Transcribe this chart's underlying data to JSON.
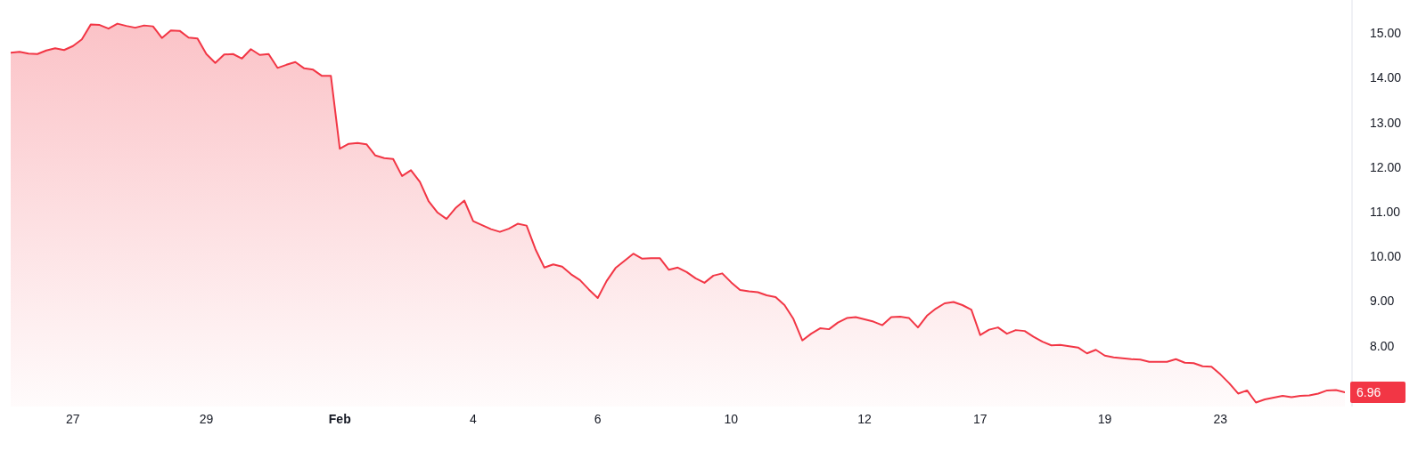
{
  "chart_data": {
    "type": "area",
    "color": "#f23645",
    "categories": [
      null,
      null,
      null,
      null,
      null,
      null,
      null,
      "27",
      null,
      null,
      null,
      null,
      null,
      null,
      null,
      null,
      null,
      null,
      null,
      null,
      null,
      null,
      "29",
      null,
      null,
      null,
      null,
      null,
      null,
      null,
      null,
      null,
      null,
      null,
      null,
      null,
      null,
      "Feb",
      null,
      null,
      null,
      null,
      null,
      null,
      null,
      null,
      null,
      null,
      null,
      null,
      null,
      null,
      "4",
      null,
      null,
      null,
      null,
      null,
      null,
      null,
      null,
      null,
      null,
      null,
      null,
      null,
      "6",
      null,
      null,
      null,
      null,
      null,
      null,
      null,
      null,
      null,
      null,
      null,
      null,
      null,
      null,
      "10",
      null,
      null,
      null,
      null,
      null,
      null,
      null,
      null,
      null,
      null,
      null,
      null,
      null,
      null,
      "12",
      null,
      null,
      null,
      null,
      null,
      null,
      null,
      null,
      null,
      null,
      null,
      null,
      "17",
      null,
      null,
      null,
      null,
      null,
      null,
      null,
      null,
      null,
      null,
      null,
      null,
      null,
      "19",
      null,
      null,
      null,
      null,
      null,
      null,
      null,
      null,
      null,
      null,
      null,
      null,
      "23",
      null,
      null,
      null,
      null,
      null,
      null,
      null,
      null,
      null,
      null,
      null,
      null,
      null,
      null
    ],
    "values": [
      14.56,
      14.58,
      14.54,
      14.53,
      14.61,
      14.66,
      14.62,
      14.71,
      14.86,
      15.19,
      15.18,
      15.1,
      15.21,
      15.16,
      15.12,
      15.17,
      15.15,
      14.89,
      15.06,
      15.05,
      14.9,
      14.88,
      14.53,
      14.33,
      14.52,
      14.53,
      14.43,
      14.64,
      14.51,
      14.53,
      14.22,
      14.29,
      14.35,
      14.21,
      14.18,
      14.04,
      14.04,
      12.41,
      12.52,
      12.54,
      12.51,
      12.26,
      12.2,
      12.18,
      11.8,
      11.93,
      11.67,
      11.23,
      10.98,
      10.84,
      11.08,
      11.25,
      10.79,
      10.7,
      10.61,
      10.55,
      10.62,
      10.73,
      10.69,
      10.16,
      9.75,
      9.82,
      9.77,
      9.6,
      9.47,
      9.26,
      9.07,
      9.45,
      9.74,
      9.9,
      10.06,
      9.95,
      9.96,
      9.96,
      9.7,
      9.75,
      9.65,
      9.51,
      9.41,
      9.57,
      9.62,
      9.42,
      9.25,
      9.22,
      9.2,
      9.13,
      9.09,
      8.91,
      8.6,
      8.12,
      8.27,
      8.39,
      8.37,
      8.52,
      8.62,
      8.64,
      8.59,
      8.54,
      8.46,
      8.64,
      8.65,
      8.62,
      8.41,
      8.67,
      8.83,
      8.95,
      8.98,
      8.91,
      8.81,
      8.24,
      8.36,
      8.41,
      8.27,
      8.35,
      8.33,
      8.2,
      8.09,
      8.01,
      8.02,
      7.99,
      7.96,
      7.83,
      7.91,
      7.78,
      7.74,
      7.72,
      7.7,
      7.69,
      7.64,
      7.64,
      7.64,
      7.7,
      7.62,
      7.61,
      7.54,
      7.53,
      7.36,
      7.16,
      6.93,
      7.0,
      6.73,
      6.8,
      6.84,
      6.88,
      6.85,
      6.88,
      6.89,
      6.93,
      7.0,
      7.01,
      6.96
    ],
    "value_labels": [
      null,
      null,
      null,
      null,
      null,
      null,
      null,
      null,
      null,
      null,
      null,
      null,
      null,
      null,
      null,
      null,
      null,
      null,
      null,
      null,
      null,
      null,
      null,
      null,
      null,
      null,
      null,
      null,
      null,
      null,
      null,
      null,
      null,
      null,
      null,
      null,
      null,
      null,
      null,
      null,
      null,
      null,
      null,
      null,
      null,
      null,
      null,
      null,
      null,
      null,
      null,
      null,
      null,
      null,
      null,
      null,
      null,
      null,
      null,
      null,
      null,
      null,
      null,
      null,
      null,
      null,
      null,
      null,
      null,
      null,
      null,
      null,
      null,
      null,
      null,
      null,
      null,
      null,
      null,
      null,
      null,
      null,
      null,
      null,
      null,
      null,
      null,
      null,
      null,
      null,
      null,
      null,
      null,
      null,
      null,
      null,
      null,
      null,
      null,
      null,
      null,
      null,
      null,
      null,
      null,
      null,
      null,
      null,
      null,
      null,
      null,
      null,
      null,
      null,
      null,
      null,
      null,
      null,
      null,
      null,
      null,
      null,
      null,
      null,
      null,
      null,
      null,
      null,
      null,
      null,
      null,
      null,
      null,
      null,
      null,
      null,
      null,
      null,
      null,
      null,
      null,
      null,
      null,
      null,
      null,
      null,
      null,
      null,
      null,
      null,
      "6.96"
    ],
    "ylim": [
      6.64,
      15.74
    ],
    "yticks": [
      {
        "value": 8,
        "label": "8.00"
      },
      {
        "value": 9,
        "label": "9.00"
      },
      {
        "value": 10,
        "label": "10.00"
      },
      {
        "value": 11,
        "label": "11.00"
      },
      {
        "value": 12,
        "label": "12.00"
      },
      {
        "value": 13,
        "label": "13.00"
      },
      {
        "value": 14,
        "label": "14.00"
      },
      {
        "value": 15,
        "label": "15.00"
      }
    ]
  }
}
